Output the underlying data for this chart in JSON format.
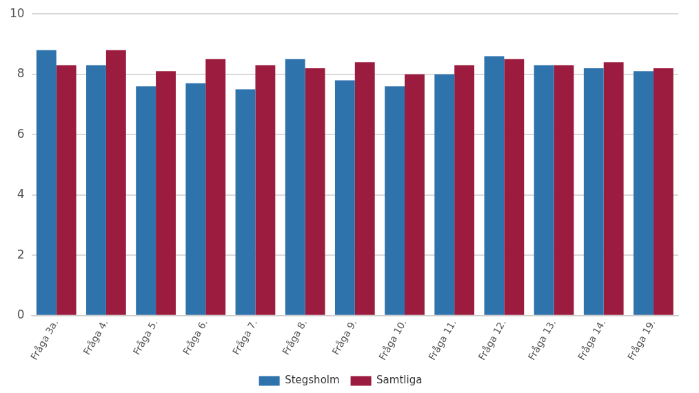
{
  "chart_data": {
    "type": "bar",
    "categories": [
      "Fråga 3a.",
      "Fråga 4.",
      "Fråga 5.",
      "Fråga 6.",
      "Fråga 7.",
      "Fråga 8.",
      "Fråga 9.",
      "Fråga 10.",
      "Fråga 11.",
      "Fråga 12.",
      "Fråga 13.",
      "Fråga 14.",
      "Fråga 19."
    ],
    "series": [
      {
        "name": "Stegsholm",
        "color": "#2f73ad",
        "values": [
          8.8,
          8.3,
          7.6,
          7.7,
          7.5,
          8.5,
          7.8,
          7.6,
          8.0,
          8.6,
          8.3,
          8.2,
          8.1
        ]
      },
      {
        "name": "Samtliga",
        "color": "#9b1c3e",
        "values": [
          8.3,
          8.8,
          8.1,
          8.5,
          8.3,
          8.2,
          8.4,
          8.0,
          8.3,
          8.5,
          8.3,
          8.4,
          8.2
        ]
      }
    ],
    "ylim": [
      0,
      10
    ],
    "yticks": [
      0,
      2,
      4,
      6,
      8,
      10
    ],
    "grid": "y",
    "legend": "bottom"
  }
}
